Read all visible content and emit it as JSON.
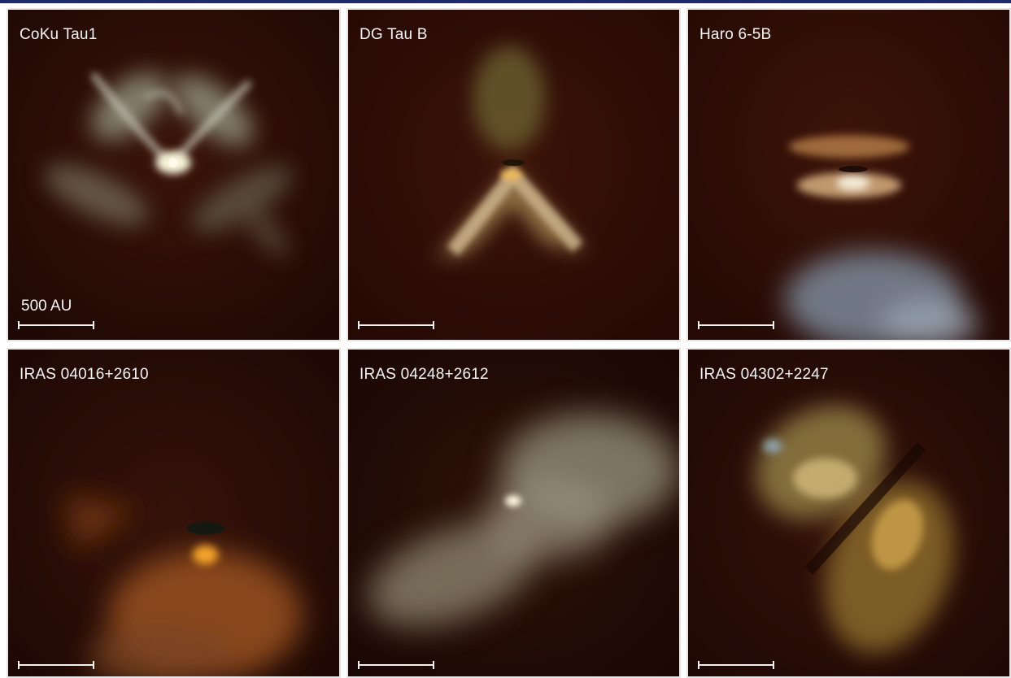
{
  "colors": {
    "frame_border": "#e6e6e6",
    "background": "#2a0c05",
    "top_bar": "#1e2a6e",
    "label_text": "#f4f4f4"
  },
  "panels": [
    {
      "label": "CoKu Tau1",
      "scale_label": "500 AU"
    },
    {
      "label": "DG Tau B"
    },
    {
      "label": "Haro 6-5B"
    },
    {
      "label": "IRAS 04016+2610"
    },
    {
      "label": "IRAS 04248+2612"
    },
    {
      "label": "IRAS 04302+2247"
    }
  ]
}
